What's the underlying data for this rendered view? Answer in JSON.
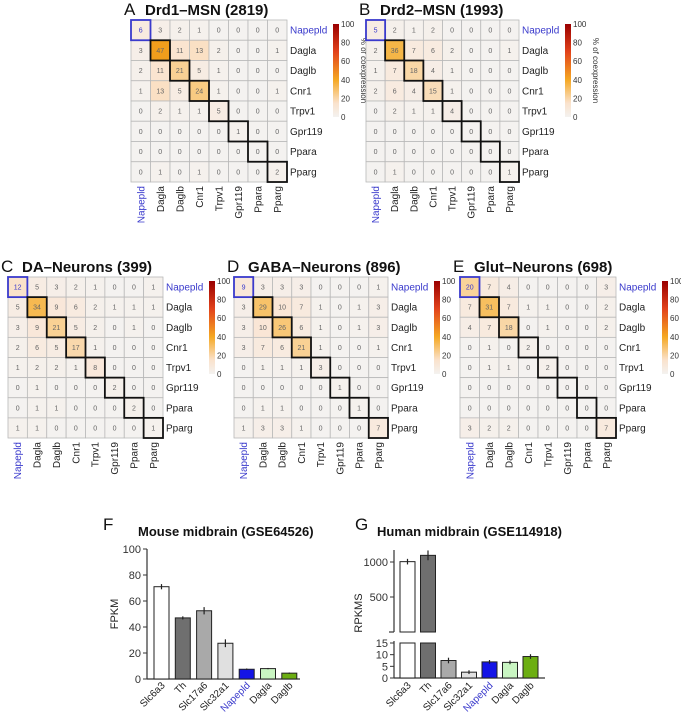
{
  "colors": {
    "highlight": "#3a3acc",
    "diag": "#111111"
  },
  "chart_data": [
    {
      "type": "heatmap",
      "letter": "A",
      "title": "Drd1–MSN (2819)",
      "colorbar_label": "% of coexpression",
      "colorbar_ticks": [
        100,
        80,
        60,
        40,
        20,
        0
      ],
      "range": [
        0,
        100
      ],
      "genes": [
        "Napepld",
        "Dagla",
        "Daglb",
        "Cnr1",
        "Trpv1",
        "Gpr119",
        "Ppara",
        "Pparg"
      ],
      "matrix": [
        [
          6,
          3,
          2,
          1,
          0,
          0,
          0,
          0
        ],
        [
          3,
          47,
          11,
          13,
          2,
          0,
          0,
          1
        ],
        [
          2,
          11,
          21,
          5,
          1,
          0,
          0,
          0
        ],
        [
          1,
          13,
          5,
          24,
          1,
          0,
          0,
          1
        ],
        [
          0,
          2,
          1,
          1,
          5,
          0,
          0,
          0
        ],
        [
          0,
          0,
          0,
          0,
          0,
          1,
          0,
          0
        ],
        [
          0,
          0,
          0,
          0,
          0,
          0,
          0,
          0
        ],
        [
          0,
          1,
          0,
          1,
          0,
          0,
          0,
          2
        ]
      ]
    },
    {
      "type": "heatmap",
      "letter": "B",
      "title": "Drd2–MSN (1993)",
      "colorbar_label": "% of coexpression",
      "colorbar_ticks": [
        100,
        80,
        60,
        40,
        20,
        0
      ],
      "range": [
        0,
        100
      ],
      "genes": [
        "Napepld",
        "Dagla",
        "Daglb",
        "Cnr1",
        "Trpv1",
        "Gpr119",
        "Ppara",
        "Pparg"
      ],
      "matrix": [
        [
          5,
          2,
          1,
          2,
          0,
          0,
          0,
          0
        ],
        [
          2,
          36,
          7,
          6,
          2,
          0,
          0,
          1
        ],
        [
          1,
          7,
          18,
          4,
          1,
          0,
          0,
          0
        ],
        [
          2,
          6,
          4,
          15,
          1,
          0,
          0,
          0
        ],
        [
          0,
          2,
          1,
          1,
          4,
          0,
          0,
          0
        ],
        [
          0,
          0,
          0,
          0,
          0,
          0,
          0,
          0
        ],
        [
          0,
          0,
          0,
          0,
          0,
          0,
          0,
          0
        ],
        [
          0,
          1,
          0,
          0,
          0,
          0,
          0,
          1
        ]
      ]
    },
    {
      "type": "heatmap",
      "letter": "C",
      "title": "DA–Neurons (399)",
      "colorbar_label": "% of coexpression",
      "colorbar_ticks": [
        100,
        80,
        60,
        40,
        20,
        0
      ],
      "range": [
        0,
        100
      ],
      "genes": [
        "Napepld",
        "Dagla",
        "Daglb",
        "Cnr1",
        "Trpv1",
        "Gpr119",
        "Ppara",
        "Pparg"
      ],
      "matrix": [
        [
          12,
          5,
          3,
          2,
          1,
          0,
          0,
          1
        ],
        [
          5,
          34,
          9,
          6,
          2,
          1,
          1,
          1
        ],
        [
          3,
          9,
          21,
          5,
          2,
          0,
          1,
          0
        ],
        [
          2,
          6,
          5,
          17,
          1,
          0,
          0,
          0
        ],
        [
          1,
          2,
          2,
          1,
          8,
          0,
          0,
          0
        ],
        [
          0,
          1,
          0,
          0,
          0,
          2,
          0,
          0
        ],
        [
          0,
          1,
          1,
          0,
          0,
          0,
          2,
          0
        ],
        [
          1,
          1,
          0,
          0,
          0,
          0,
          0,
          1
        ]
      ]
    },
    {
      "type": "heatmap",
      "letter": "D",
      "title": "GABA–Neurons (896)",
      "colorbar_label": "% of coexpression",
      "colorbar_ticks": [
        100,
        80,
        60,
        40,
        20,
        0
      ],
      "range": [
        0,
        100
      ],
      "genes": [
        "Napepld",
        "Dagla",
        "Daglb",
        "Cnr1",
        "Trpv1",
        "Gpr119",
        "Ppara",
        "Pparg"
      ],
      "matrix": [
        [
          9,
          3,
          3,
          3,
          0,
          0,
          0,
          1
        ],
        [
          3,
          29,
          10,
          7,
          1,
          0,
          1,
          3
        ],
        [
          3,
          10,
          26,
          6,
          1,
          0,
          1,
          3
        ],
        [
          3,
          7,
          6,
          21,
          1,
          0,
          0,
          1
        ],
        [
          0,
          1,
          1,
          1,
          3,
          0,
          0,
          0
        ],
        [
          0,
          0,
          0,
          0,
          0,
          1,
          0,
          0
        ],
        [
          0,
          1,
          1,
          0,
          0,
          0,
          1,
          0
        ],
        [
          1,
          3,
          3,
          1,
          0,
          0,
          0,
          7
        ]
      ]
    },
    {
      "type": "heatmap",
      "letter": "E",
      "title": "Glut–Neurons (698)",
      "colorbar_label": "% of coexpression",
      "colorbar_ticks": [
        100,
        80,
        60,
        40,
        20,
        0
      ],
      "range": [
        0,
        100
      ],
      "genes": [
        "Napepld",
        "Dagla",
        "Daglb",
        "Cnr1",
        "Trpv1",
        "Gpr119",
        "Ppara",
        "Pparg"
      ],
      "matrix": [
        [
          20,
          7,
          4,
          0,
          0,
          0,
          0,
          3
        ],
        [
          7,
          31,
          7,
          1,
          1,
          0,
          0,
          2
        ],
        [
          4,
          7,
          18,
          0,
          1,
          0,
          0,
          2
        ],
        [
          0,
          1,
          0,
          2,
          0,
          0,
          0,
          0
        ],
        [
          0,
          1,
          1,
          0,
          2,
          0,
          0,
          0
        ],
        [
          0,
          0,
          0,
          0,
          0,
          0,
          0,
          0
        ],
        [
          0,
          0,
          0,
          0,
          0,
          0,
          0,
          0
        ],
        [
          3,
          2,
          2,
          0,
          0,
          0,
          0,
          7
        ]
      ]
    },
    {
      "type": "bar",
      "letter": "F",
      "title": "Mouse midbrain (GSE64526)",
      "ylabel": "FPKM",
      "ylim": [
        0,
        100
      ],
      "yticks": [
        0,
        20,
        40,
        60,
        80,
        100
      ],
      "categories": [
        "Slc6a3",
        "Th",
        "Slc17a6",
        "Slc32a1",
        "Napepld",
        "Dagla",
        "Daglb"
      ],
      "values": [
        71,
        47,
        52.5,
        27.5,
        7.5,
        8,
        4.5
      ],
      "errors": [
        2,
        1.2,
        2.8,
        3,
        0.6,
        0.5,
        0.5
      ],
      "bar_colors": [
        "#ffffff",
        "#6f6f6f",
        "#a9a9a9",
        "#e0e0e0",
        "#1414e6",
        "#c9f5c2",
        "#6cae12"
      ]
    },
    {
      "type": "bar",
      "letter": "G",
      "title": "Human midbrain (GSE114918)",
      "ylabel": "RPKMS",
      "broken_axis": true,
      "yticks_lower": [
        0,
        5,
        10,
        15
      ],
      "yticks_upper": [
        500,
        1000
      ],
      "categories": [
        "Slc6a3",
        "Th",
        "Slc17a6",
        "Slc32a1",
        "Napepld",
        "Dagla",
        "Daglb"
      ],
      "values": [
        1005,
        1095,
        7.5,
        2.5,
        6.9,
        6.7,
        9.2
      ],
      "errors": [
        40,
        70,
        1.2,
        0.8,
        0.8,
        0.8,
        1
      ],
      "bar_colors": [
        "#ffffff",
        "#6f6f6f",
        "#a9a9a9",
        "#e0e0e0",
        "#1414e6",
        "#c9f5c2",
        "#6cae12"
      ]
    }
  ]
}
